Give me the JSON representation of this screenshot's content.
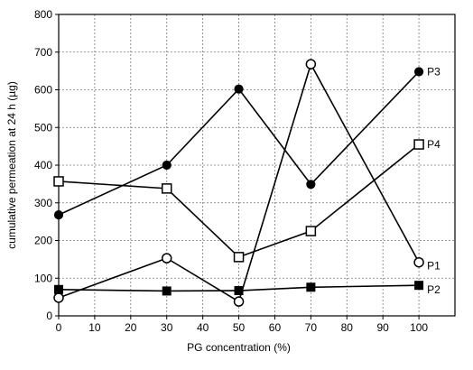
{
  "chart_data": {
    "type": "line",
    "title": "",
    "xlabel": "PG concentration (%)",
    "ylabel": "cumulative permeation at 24 h (µg)",
    "xlim": [
      0,
      110
    ],
    "ylim": [
      0,
      800
    ],
    "x_ticks": [
      0,
      10,
      20,
      30,
      40,
      50,
      60,
      70,
      80,
      90,
      100
    ],
    "y_ticks": [
      0,
      100,
      200,
      300,
      400,
      500,
      600,
      700,
      800
    ],
    "grid": "dotted",
    "legend": "direct labels at right end of each series",
    "x": [
      0,
      30,
      50,
      70,
      100
    ],
    "series": [
      {
        "name": "P1",
        "marker": "open-circle",
        "values": [
          48,
          153,
          38,
          668,
          142
        ]
      },
      {
        "name": "P2",
        "marker": "filled-square",
        "values": [
          70,
          66,
          67,
          76,
          81
        ]
      },
      {
        "name": "P3",
        "marker": "filled-circle",
        "values": [
          268,
          400,
          602,
          349,
          648
        ]
      },
      {
        "name": "P4",
        "marker": "open-square",
        "values": [
          357,
          338,
          156,
          225,
          455
        ]
      }
    ]
  }
}
